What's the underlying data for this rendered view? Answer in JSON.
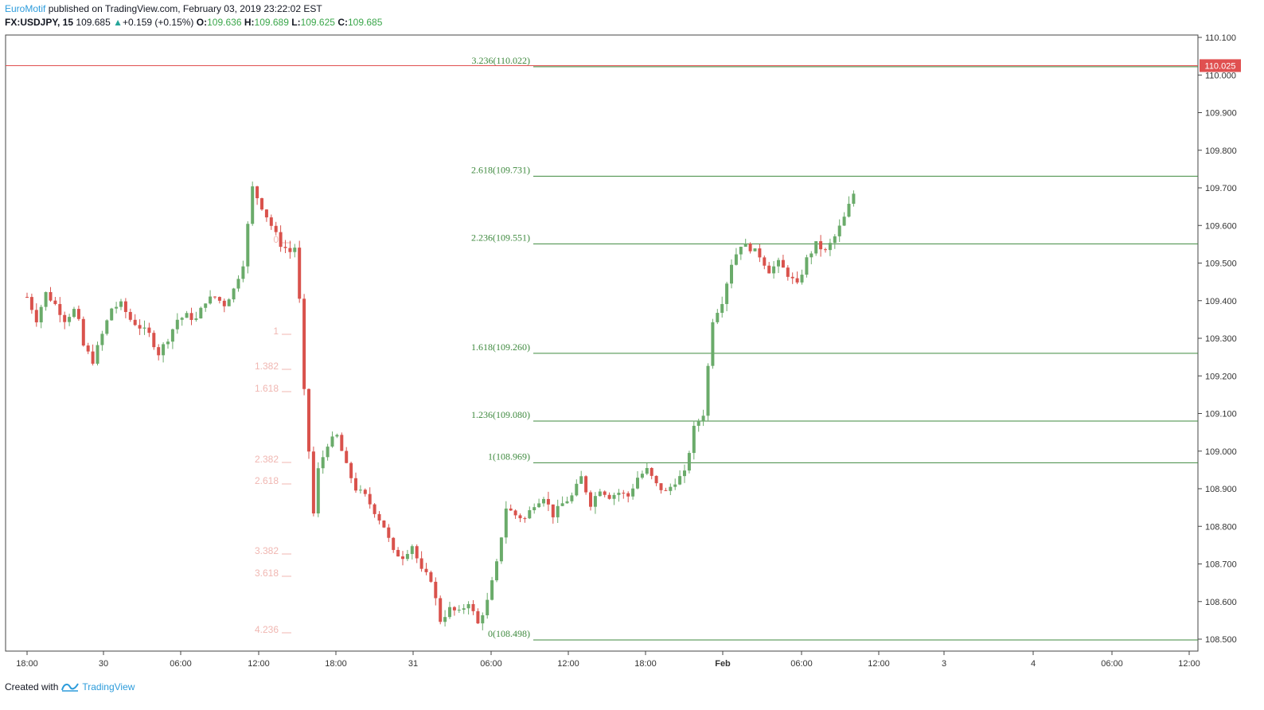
{
  "header": {
    "author": "EuroMotif",
    "published_text": "published on TradingView.com, February 03, 2019 23:22:02 EST",
    "symbol": "FX:USDJPY, 15",
    "last_price": "109.685",
    "change": "+0.159 (+0.15%)",
    "open_label": "O:",
    "open": "109.636",
    "high_label": "H:",
    "high": "109.689",
    "low_label": "L:",
    "low": "109.625",
    "close_label": "C:",
    "close": "109.685"
  },
  "footer": {
    "created_with": "Created with",
    "brand": "TradingView"
  },
  "colors": {
    "up_candle": "#6aab6a",
    "down_candle": "#d9524c",
    "fib_line": "#3f8a3f",
    "fib_faint": "#f0b7b2",
    "price_tag": "#e05050",
    "axis_text": "#333333"
  },
  "chart_data": {
    "type": "candlestick",
    "symbol": "FX:USDJPY",
    "interval": "15",
    "y_ticks": [
      "110.100",
      "110.000",
      "109.900",
      "109.800",
      "109.700",
      "109.600",
      "109.500",
      "109.400",
      "109.300",
      "109.200",
      "109.100",
      "109.000",
      "108.900",
      "108.800",
      "108.700",
      "108.600",
      "108.500"
    ],
    "ylim": [
      108.48,
      110.1
    ],
    "x_ticks": [
      "18:00",
      "30",
      "06:00",
      "12:00",
      "18:00",
      "31",
      "06:00",
      "12:00",
      "18:00",
      "Feb",
      "06:00",
      "12:00",
      "3",
      "4",
      "06:00",
      "12:00"
    ],
    "bold_x_ticks": [
      "Feb"
    ],
    "current_price_tag": "110.025",
    "current_price": 110.025,
    "fib_extension_main": [
      {
        "label": "3.236(110.022)",
        "price": 110.022
      },
      {
        "label": "2.618(109.731)",
        "price": 109.731
      },
      {
        "label": "2.236(109.551)",
        "price": 109.551
      },
      {
        "label": "1.618(109.260)",
        "price": 109.26
      },
      {
        "label": "1.236(109.080)",
        "price": 109.08
      },
      {
        "label": "1(108.969)",
        "price": 108.969
      },
      {
        "label": "0(108.498)",
        "price": 108.498
      }
    ],
    "fib_faint_labels": [
      "0",
      "1",
      "1.382",
      "1.618",
      "2.382",
      "2.618",
      "3.382",
      "3.618",
      "4.236"
    ],
    "price_path": [
      [
        0,
        109.41
      ],
      [
        0.5,
        109.35
      ],
      [
        1,
        109.42
      ],
      [
        1.5,
        109.39
      ],
      [
        2,
        109.35
      ],
      [
        2.6,
        109.38
      ],
      [
        3,
        109.28
      ],
      [
        3.5,
        109.24
      ],
      [
        4,
        109.31
      ],
      [
        4.5,
        109.38
      ],
      [
        5,
        109.39
      ],
      [
        5.5,
        109.35
      ],
      [
        6,
        109.33
      ],
      [
        6.5,
        109.31
      ],
      [
        7,
        109.26
      ],
      [
        7.5,
        109.3
      ],
      [
        8,
        109.35
      ],
      [
        8.5,
        109.36
      ],
      [
        9,
        109.35
      ],
      [
        9.5,
        109.4
      ],
      [
        10,
        109.41
      ],
      [
        10.5,
        109.39
      ],
      [
        11,
        109.43
      ],
      [
        11.5,
        109.5
      ],
      [
        12,
        109.7
      ],
      [
        12.5,
        109.65
      ],
      [
        13,
        109.6
      ],
      [
        13.5,
        109.55
      ],
      [
        14,
        109.53
      ],
      [
        14.4,
        109.55
      ],
      [
        14.6,
        109.25
      ],
      [
        15,
        109.0
      ],
      [
        15.2,
        108.81
      ],
      [
        15.5,
        108.95
      ],
      [
        16,
        109.02
      ],
      [
        16.5,
        109.04
      ],
      [
        17,
        108.96
      ],
      [
        17.5,
        108.9
      ],
      [
        18,
        108.88
      ],
      [
        18.5,
        108.84
      ],
      [
        19,
        108.8
      ],
      [
        19.5,
        108.73
      ],
      [
        20,
        108.72
      ],
      [
        20.5,
        108.75
      ],
      [
        21,
        108.68
      ],
      [
        21.5,
        108.66
      ],
      [
        22,
        108.55
      ],
      [
        22.5,
        108.58
      ],
      [
        23,
        108.57
      ],
      [
        23.5,
        108.6
      ],
      [
        24,
        108.54
      ],
      [
        24.5,
        108.6
      ],
      [
        25,
        108.7
      ],
      [
        25.5,
        108.85
      ],
      [
        26,
        108.83
      ],
      [
        26.5,
        108.82
      ],
      [
        27,
        108.86
      ],
      [
        27.5,
        108.88
      ],
      [
        28,
        108.83
      ],
      [
        28.5,
        108.86
      ],
      [
        29,
        108.88
      ],
      [
        29.5,
        108.93
      ],
      [
        30,
        108.86
      ],
      [
        30.5,
        108.9
      ],
      [
        31,
        108.88
      ],
      [
        31.5,
        108.89
      ],
      [
        32,
        108.88
      ],
      [
        32.5,
        108.93
      ],
      [
        33,
        108.95
      ],
      [
        33.5,
        108.91
      ],
      [
        34,
        108.89
      ],
      [
        34.5,
        108.92
      ],
      [
        35,
        108.94
      ],
      [
        35.5,
        109.06
      ],
      [
        36,
        109.1
      ],
      [
        36.5,
        109.35
      ],
      [
        37,
        109.4
      ],
      [
        37.5,
        109.5
      ],
      [
        38,
        109.55
      ],
      [
        38.5,
        109.54
      ],
      [
        39,
        109.52
      ],
      [
        39.5,
        109.48
      ],
      [
        40,
        109.5
      ],
      [
        40.5,
        109.47
      ],
      [
        41,
        109.44
      ],
      [
        41.5,
        109.51
      ],
      [
        42,
        109.55
      ],
      [
        42.5,
        109.53
      ],
      [
        43,
        109.57
      ],
      [
        43.5,
        109.62
      ],
      [
        44,
        109.685
      ]
    ],
    "x_range": [
      0,
      62.1
    ]
  }
}
